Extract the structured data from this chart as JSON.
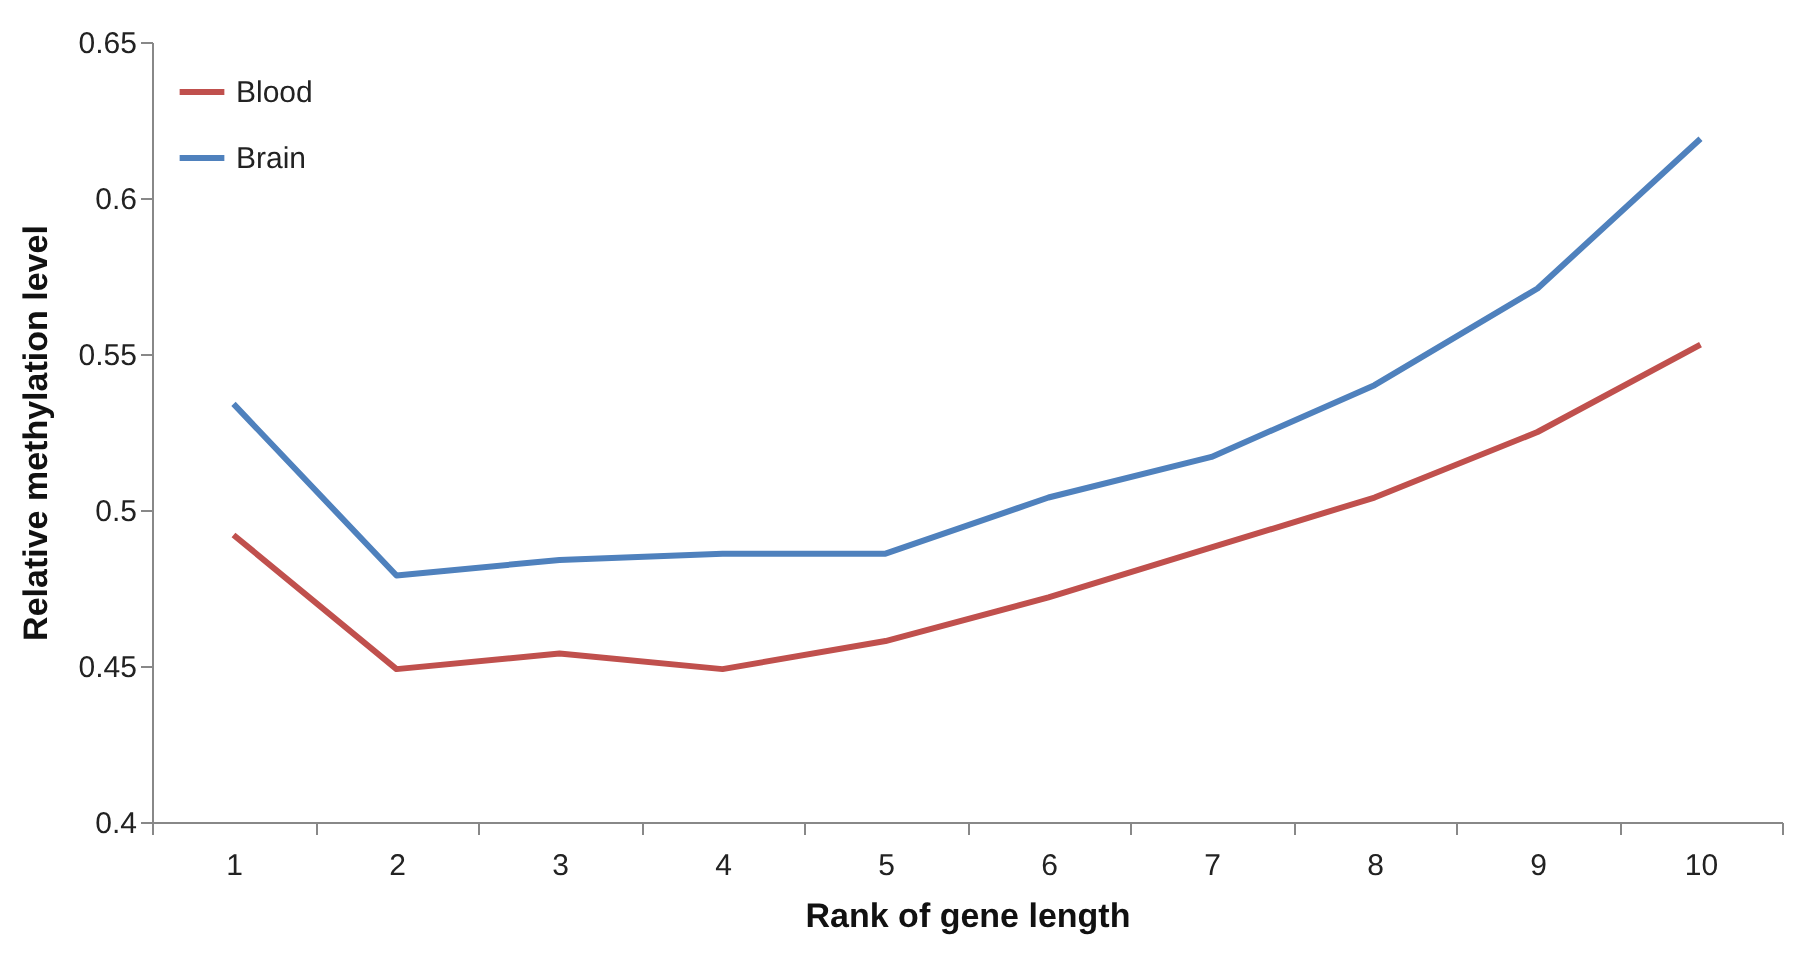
{
  "chart_data": {
    "type": "line",
    "xlabel": "Rank of gene length",
    "ylabel": "Relative methylation level",
    "categories": [
      "1",
      "2",
      "3",
      "4",
      "5",
      "6",
      "7",
      "8",
      "9",
      "10"
    ],
    "series": [
      {
        "name": "Blood",
        "color": "#c0504d",
        "values": [
          0.492,
          0.449,
          0.454,
          0.449,
          0.458,
          0.472,
          0.488,
          0.504,
          0.525,
          0.553
        ]
      },
      {
        "name": "Brain",
        "color": "#4f81bd",
        "values": [
          0.534,
          0.479,
          0.484,
          0.486,
          0.486,
          0.504,
          0.517,
          0.54,
          0.571,
          0.619
        ]
      }
    ],
    "ylim": [
      0.4,
      0.65
    ],
    "yticks": [
      0.4,
      0.45,
      0.5,
      0.55,
      0.6,
      0.65
    ],
    "grid": false,
    "legend": "top left",
    "marker": "none",
    "line_style": "solid"
  }
}
